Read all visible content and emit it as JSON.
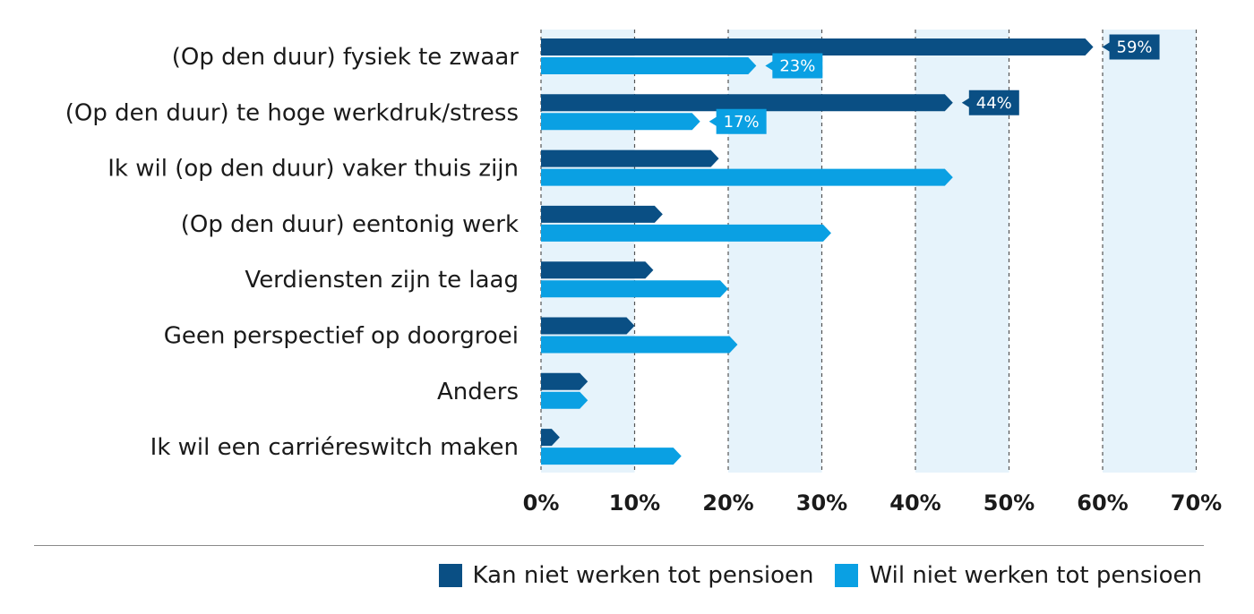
{
  "colors": {
    "kan": "#0a4f84",
    "wil": "#0aa0e3",
    "band": "#e6f3fb",
    "grid": "#555555"
  },
  "chart_data": {
    "type": "bar",
    "orientation": "horizontal",
    "categories": [
      "(Op den duur) fysiek te zwaar",
      "(Op den duur) te hoge werkdruk/stress",
      "Ik wil (op den duur) vaker thuis zijn",
      "(Op den duur) eentonig werk",
      "Verdiensten zijn te laag",
      "Geen perspectief op doorgroei",
      "Anders",
      "Ik wil een carriéreswitch maken"
    ],
    "series": [
      {
        "name": "Kan niet werken tot pensioen",
        "values": [
          59,
          44,
          19,
          13,
          12,
          10,
          5,
          2
        ],
        "labels": [
          "59%",
          "44%",
          null,
          null,
          null,
          null,
          null,
          null
        ]
      },
      {
        "name": "Wil niet werken tot pensioen",
        "values": [
          23,
          17,
          44,
          31,
          20,
          21,
          5,
          15
        ],
        "labels": [
          "23%",
          "17%",
          null,
          null,
          null,
          null,
          null,
          null
        ]
      }
    ],
    "xlim": [
      0,
      70
    ],
    "ticks": [
      "0%",
      "10%",
      "20%",
      "30%",
      "40%",
      "50%",
      "60%",
      "70%"
    ],
    "grid": "dashed vertical",
    "legend_position": "bottom-right"
  },
  "legend": {
    "kan_label": "Kan niet werken tot pensioen",
    "wil_label": "Wil niet werken tot pensioen"
  }
}
